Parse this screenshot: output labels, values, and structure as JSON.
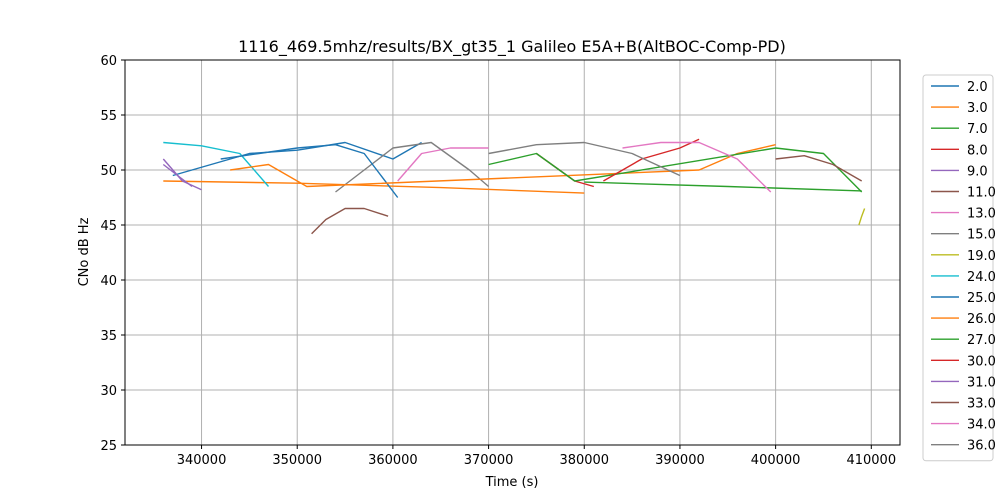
{
  "chart_data": {
    "type": "line",
    "title": "1116_469.5mhz/results/BX_gt35_1 Galileo E5A+B(AltBOC-Comp-PD)",
    "xlabel": "Time (s)",
    "ylabel": "CNo dB Hz",
    "xlim": [
      332000,
      413000
    ],
    "ylim": [
      25,
      60
    ],
    "xticks": [
      340000,
      350000,
      360000,
      370000,
      380000,
      390000,
      400000,
      410000
    ],
    "yticks": [
      25,
      30,
      35,
      40,
      45,
      50,
      55,
      60
    ],
    "grid": true,
    "legend_position": "right",
    "series": [
      {
        "name": "2.0",
        "color": "#1f77b4",
        "x": [
          337000,
          341000,
          345000,
          350000,
          355000,
          360000,
          363000
        ],
        "y": [
          49.5,
          50.5,
          51.5,
          51.8,
          52.5,
          51,
          52.5
        ]
      },
      {
        "name": "3.0",
        "color": "#ff7f0e",
        "x": [
          336000,
          350000,
          365000,
          380000
        ],
        "y": [
          49.0,
          48.8,
          48.4,
          47.9
        ]
      },
      {
        "name": "7.0",
        "color": "#2ca02c",
        "x": [
          380000,
          395000,
          409000
        ],
        "y": [
          48.9,
          48.5,
          48.1
        ]
      },
      {
        "name": "8.0",
        "color": "#d62728",
        "x": [
          375000,
          379000,
          381000
        ],
        "y": [
          51.5,
          49,
          48.5
        ]
      },
      {
        "name": "9.0",
        "color": "#9467bd",
        "x": [
          336000,
          338000,
          340000
        ],
        "y": [
          51,
          49,
          48.2
        ]
      },
      {
        "name": "11.0",
        "color": "#8c564b",
        "x": [
          351500,
          353000,
          355000,
          357000,
          359500
        ],
        "y": [
          44.2,
          45.5,
          46.5,
          46.5,
          45.8
        ]
      },
      {
        "name": "13.0",
        "color": "#e377c2",
        "x": [
          360500,
          363000,
          366000,
          370000
        ],
        "y": [
          49,
          51.5,
          52,
          52
        ]
      },
      {
        "name": "15.0",
        "color": "#7f7f7f",
        "x": [
          354000,
          357000,
          360000,
          364000,
          368000,
          370000
        ],
        "y": [
          48,
          50,
          52,
          52.5,
          50,
          48.5
        ]
      },
      {
        "name": "19.0",
        "color": "#bcbd22",
        "x": [
          408700,
          409000,
          409300
        ],
        "y": [
          45,
          45.8,
          46.5
        ]
      },
      {
        "name": "24.0",
        "color": "#17becf",
        "x": [
          336000,
          340000,
          344000,
          347000
        ],
        "y": [
          52.5,
          52.2,
          51.5,
          48.5
        ]
      },
      {
        "name": "25.0",
        "color": "#1f77b4",
        "x": [
          342000,
          346000,
          350000,
          354000,
          357000,
          360500
        ],
        "y": [
          51,
          51.5,
          52,
          52.3,
          51.5,
          47.5
        ]
      },
      {
        "name": "26.0",
        "color": "#ff7f0e",
        "x": [
          343000,
          347000,
          351000,
          392000,
          396000,
          400000
        ],
        "y": [
          50,
          50.5,
          48.5,
          50,
          51.5,
          52.3
        ]
      },
      {
        "name": "27.0",
        "color": "#2ca02c",
        "x": [
          370000,
          375000,
          379000,
          400000,
          405000,
          409000
        ],
        "y": [
          50.5,
          51.5,
          49,
          52,
          51.5,
          48
        ]
      },
      {
        "name": "30.0",
        "color": "#d62728",
        "x": [
          382000,
          386000,
          390000,
          392000
        ],
        "y": [
          49,
          51,
          52,
          52.8
        ]
      },
      {
        "name": "31.0",
        "color": "#9467bd",
        "x": [
          336000,
          337500,
          339000
        ],
        "y": [
          50.5,
          49.5,
          48.5
        ]
      },
      {
        "name": "33.0",
        "color": "#8c564b",
        "x": [
          400000,
          403000,
          406000,
          409000
        ],
        "y": [
          51,
          51.3,
          50.5,
          49
        ]
      },
      {
        "name": "34.0",
        "color": "#e377c2",
        "x": [
          384000,
          388000,
          392000,
          396000,
          399500
        ],
        "y": [
          52,
          52.5,
          52.5,
          51,
          48
        ]
      },
      {
        "name": "36.0",
        "color": "#7f7f7f",
        "x": [
          370000,
          375000,
          380000,
          385000,
          390000
        ],
        "y": [
          51.5,
          52.3,
          52.5,
          51.5,
          49.5
        ]
      }
    ]
  }
}
